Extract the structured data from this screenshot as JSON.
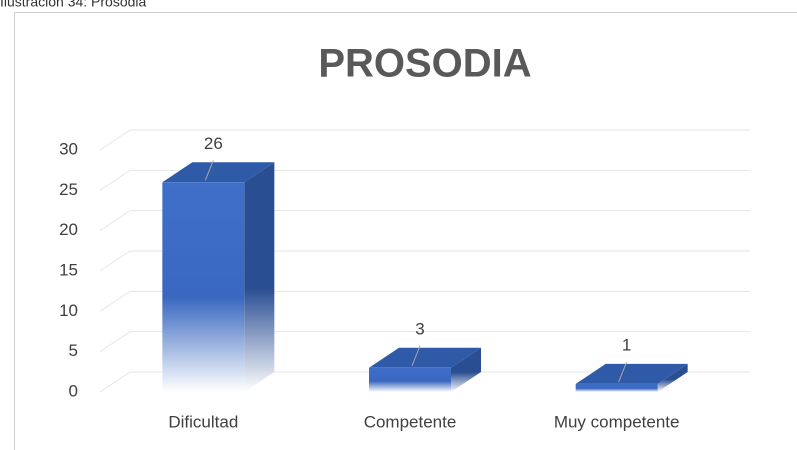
{
  "caption": "Ilustración 34: Prosodia",
  "chart_data": {
    "type": "bar3d",
    "title": "PROSODIA",
    "categories": [
      "Dificultad",
      "Competente",
      "Muy competente"
    ],
    "values": [
      26,
      3,
      1
    ],
    "color": "#4472c4",
    "ylim": [
      0,
      30
    ],
    "yticks": [
      0,
      5,
      10,
      15,
      20,
      25,
      30
    ],
    "grid": true
  }
}
